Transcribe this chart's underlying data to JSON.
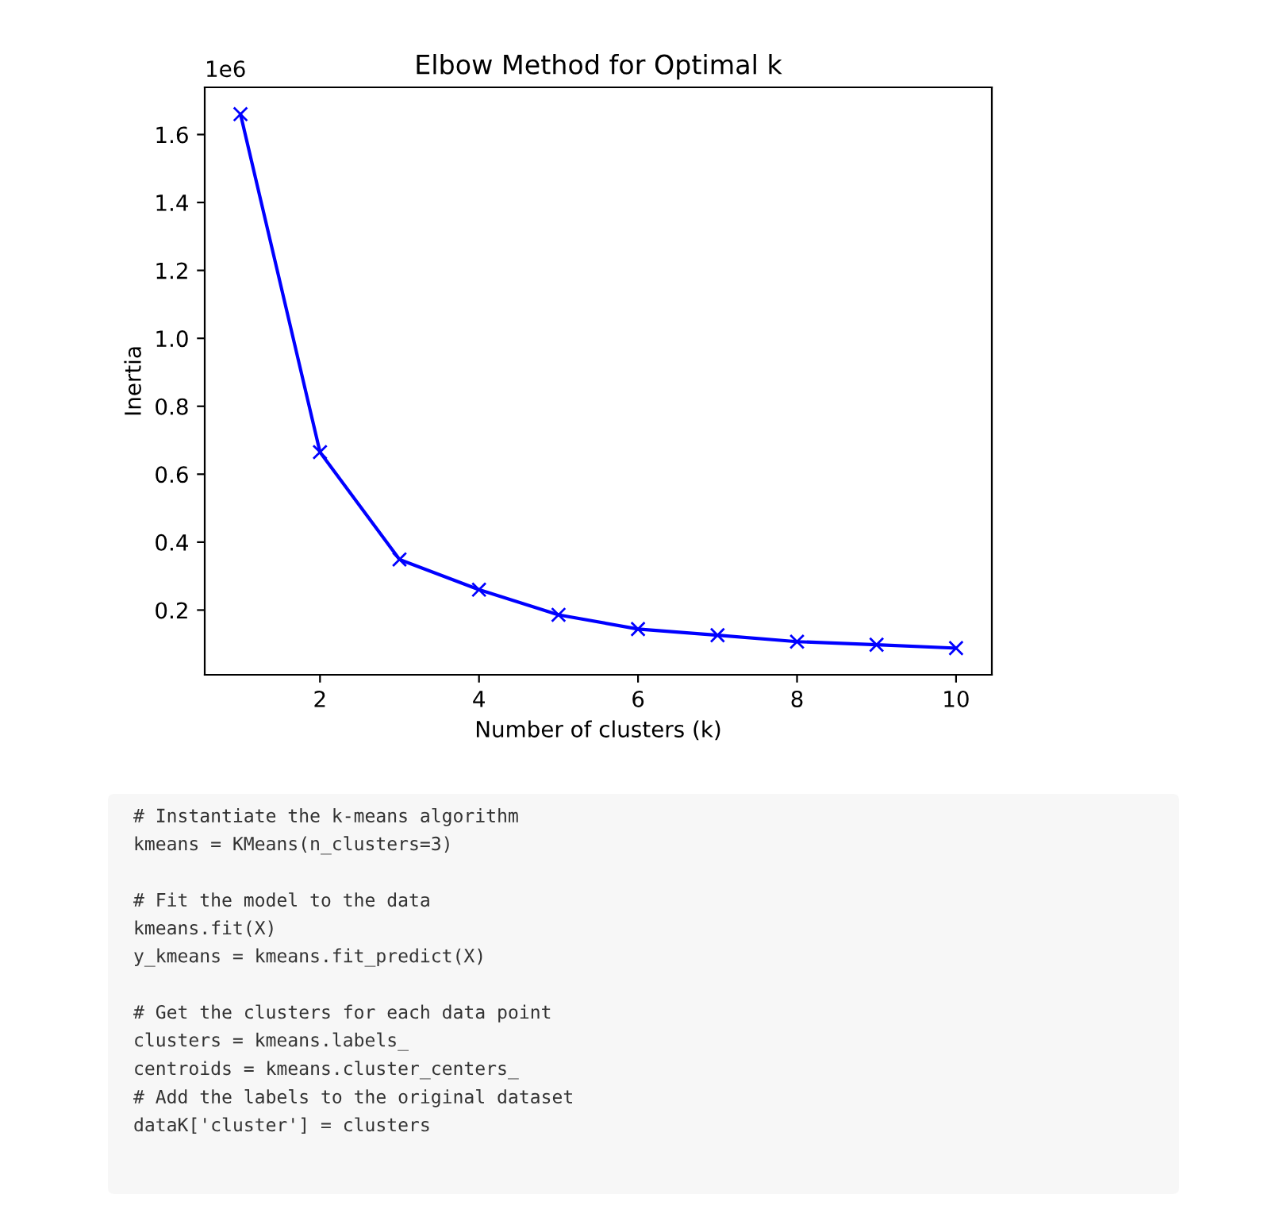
{
  "chart_data": {
    "type": "line",
    "title": "Elbow Method for Optimal k",
    "xlabel": "Number of clusters (k)",
    "ylabel": "Inertia",
    "x": [
      1,
      2,
      3,
      4,
      5,
      6,
      7,
      8,
      9,
      10
    ],
    "series": [
      {
        "color": "#0000ff",
        "values": [
          1.66,
          0.665,
          0.349,
          0.26,
          0.186,
          0.144,
          0.126,
          0.107,
          0.098,
          0.088
        ]
      }
    ],
    "marker": "cross",
    "line_style": "solid",
    "grid": false,
    "legend": false,
    "xlim": [
      0.55,
      10.45
    ],
    "xticks": [
      2,
      4,
      6,
      8,
      10
    ],
    "ylim": [
      0.0094,
      1.739
    ],
    "yticks": [
      0.2,
      0.4,
      0.6,
      0.8,
      {
        "value": 1.0,
        "label": "1.0"
      },
      1.2,
      1.4,
      1.6
    ],
    "annotations": [
      "1e6",
      "# Instantiate the k-means algorithm\nkmeans = KMeans(n_clusters=3)\n\n# Fit the model to the data\nkmeans.fit(X)\ny_kmeans = kmeans.fit_predict(X)\n\n# Get the clusters for each data point\nclusters = kmeans.labels_\ncentroids = kmeans.cluster_centers_\n# Add the labels to the original dataset\ndataK['cluster'] = clusters"
    ]
  }
}
